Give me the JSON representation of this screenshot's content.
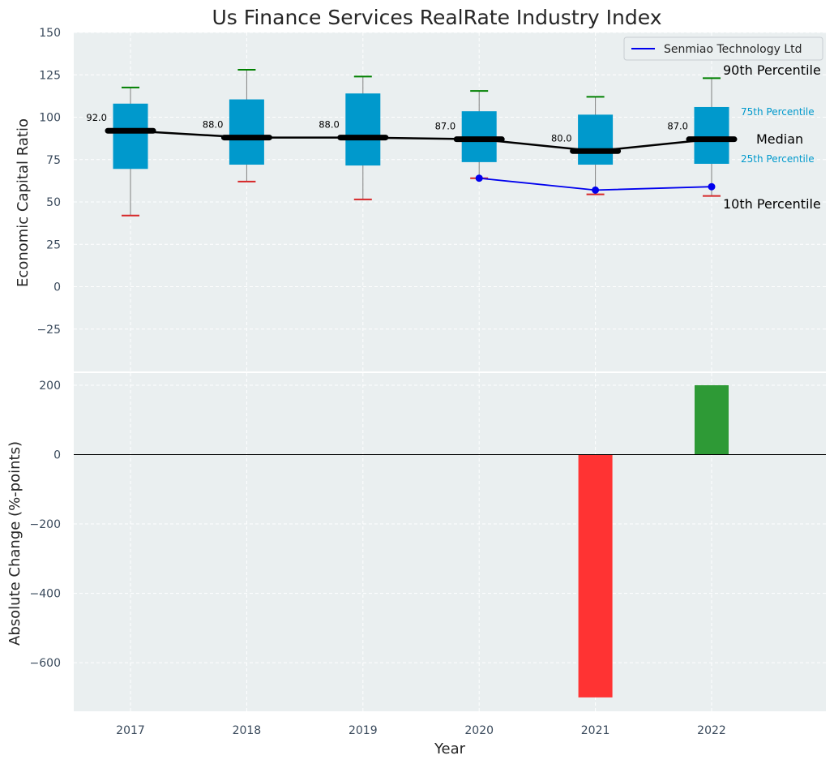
{
  "chart_data": {
    "title": "Us Finance Services RealRate Industry Index",
    "xlabel": "Year",
    "categories": [
      "2017",
      "2018",
      "2019",
      "2020",
      "2021",
      "2022"
    ],
    "top_panel": {
      "type": "box",
      "ylabel": "Economic Capital Ratio",
      "ylim": [
        -50,
        150
      ],
      "yticks": [
        150,
        125,
        100,
        75,
        50,
        25,
        0,
        -25
      ],
      "ytick_labels": [
        "150",
        "125",
        "100",
        "75",
        "50",
        "25",
        "0",
        "−25"
      ],
      "grid": true,
      "p10": [
        42,
        62,
        51.5,
        64,
        54.5,
        53.5
      ],
      "p25": [
        69.5,
        72,
        71.5,
        73.5,
        72,
        72.5
      ],
      "median": [
        92,
        88,
        88,
        87,
        80,
        87
      ],
      "p75": [
        108,
        110.5,
        114,
        103.5,
        101.5,
        106
      ],
      "p90": [
        117.5,
        128,
        124,
        115.5,
        112,
        123
      ],
      "median_labels": [
        "92.0",
        "88.0",
        "88.0",
        "87.0",
        "80.0",
        "87.0"
      ],
      "company_series": {
        "name": "Senmiao Technology Ltd",
        "x": [
          "2020",
          "2021",
          "2022"
        ],
        "values": [
          64,
          57,
          59
        ]
      },
      "legend": {
        "placement": "top-right",
        "entry": "Senmiao Technology Ltd"
      },
      "annotations": {
        "p90": "90th Percentile",
        "p75": "75th Percentile",
        "median": "Median",
        "p25": "25th Percentile",
        "p10": "10th Percentile"
      }
    },
    "bottom_panel": {
      "type": "bar",
      "ylabel": "Absolute Change (%-points)",
      "ylim": [
        -740,
        235
      ],
      "yticks": [
        200,
        0,
        -200,
        -400,
        -600
      ],
      "ytick_labels": [
        "200",
        "0",
        "−200",
        "−400",
        "−600"
      ],
      "grid": true,
      "bars": [
        {
          "x": "2021",
          "value": -700
        },
        {
          "x": "2022",
          "value": 200
        }
      ]
    }
  },
  "colors": {
    "panel_bg": "#eaeff0",
    "box": "#0099cc",
    "median": "#000000",
    "p90_cap": "#008000",
    "p10_cap": "#d62728",
    "company": "#0000ee",
    "positive_bar": "#2e9a36",
    "negative_bar": "#ff3333",
    "percentile_text": "#0099cc"
  }
}
